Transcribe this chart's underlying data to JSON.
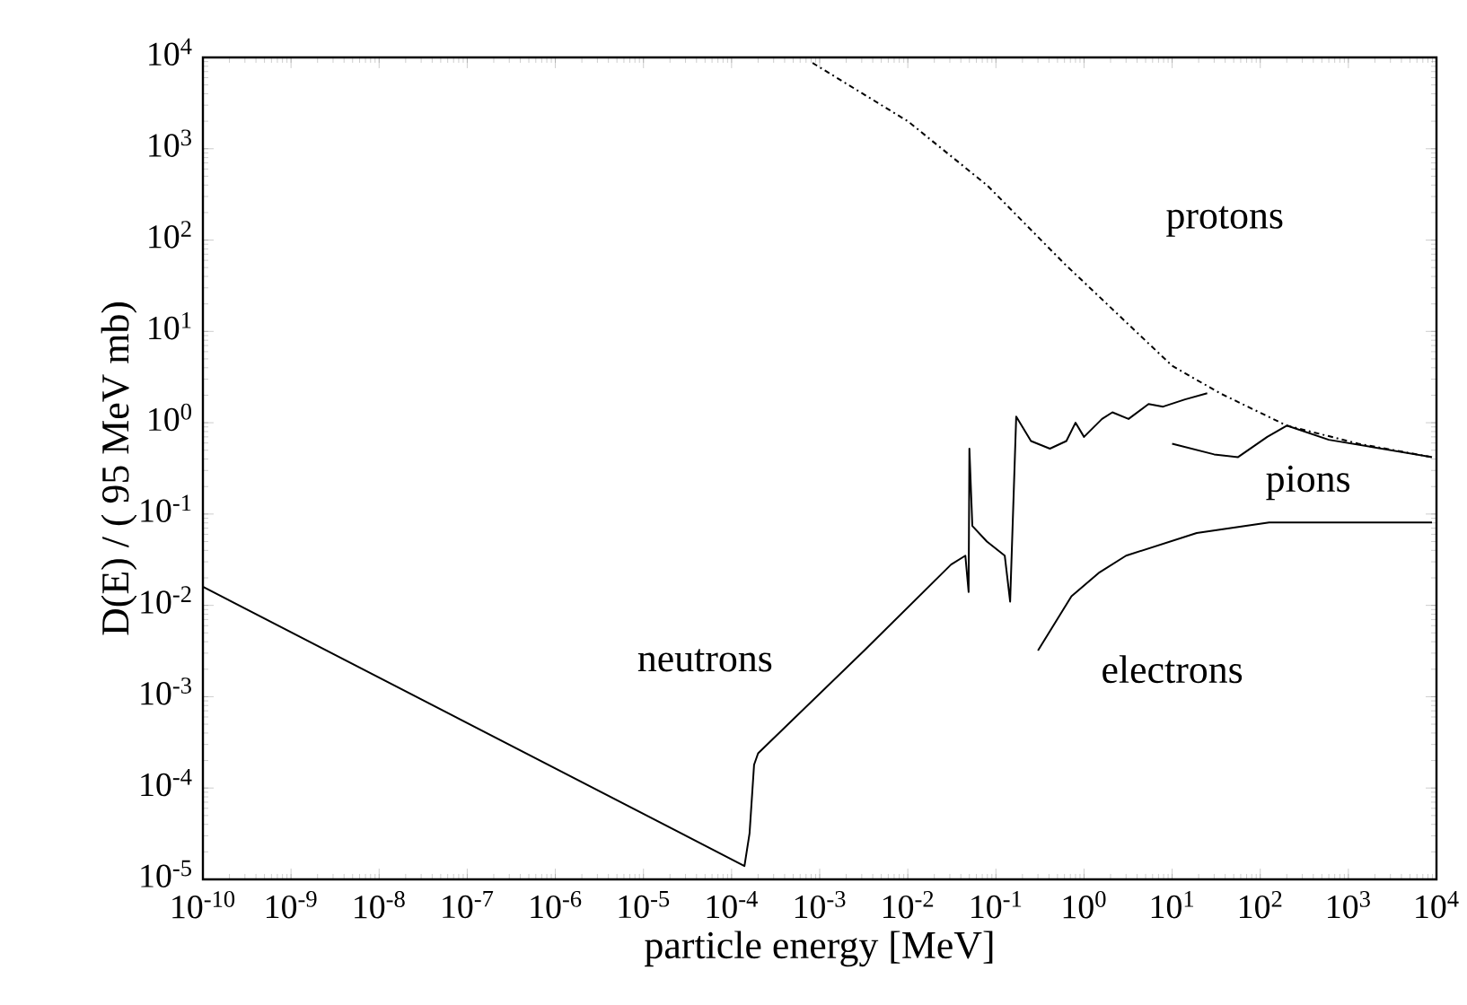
{
  "chart_data": {
    "type": "line",
    "xlabel": "particle energy [MeV]",
    "ylabel": "D(E) / ( 95 MeV mb)",
    "log": "xy",
    "legend": false,
    "grid": false,
    "xlim": [
      1e-10,
      10000
    ],
    "ylim": [
      1e-05,
      10000
    ],
    "xticks": [
      {
        "value": 1e-10,
        "label": "10$^{-10}$"
      },
      {
        "value": 1e-09,
        "label": "10$^{-9}$"
      },
      {
        "value": 1e-08,
        "label": "10$^{-8}$"
      },
      {
        "value": 1e-07,
        "label": "10$^{-7}$"
      },
      {
        "value": 1e-06,
        "label": "10$^{-6}$"
      },
      {
        "value": 1e-05,
        "label": "10$^{-5}$"
      },
      {
        "value": 0.0001,
        "label": "10$^{-4}$"
      },
      {
        "value": 0.001,
        "label": "10$^{-3}$"
      },
      {
        "value": 0.01,
        "label": "10$^{-2}$"
      },
      {
        "value": 0.1,
        "label": "10$^{-1}$"
      },
      {
        "value": 1,
        "label": "10$^{0}$"
      },
      {
        "value": 10,
        "label": "10$^{1}$"
      },
      {
        "value": 100,
        "label": "10$^{2}$"
      },
      {
        "value": 1000,
        "label": "10$^{3}$"
      },
      {
        "value": 10000,
        "label": "10$^{4}$"
      }
    ],
    "yticks": [
      {
        "value": 1e-05,
        "label": "10$^{-5}$"
      },
      {
        "value": 0.0001,
        "label": "10$^{-4}$"
      },
      {
        "value": 0.001,
        "label": "10$^{-3}$"
      },
      {
        "value": 0.01,
        "label": "10$^{-2}$"
      },
      {
        "value": 0.1,
        "label": "10$^{-1}$"
      },
      {
        "value": 1,
        "label": "10$^{0}$"
      },
      {
        "value": 10,
        "label": "10$^{1}$"
      },
      {
        "value": 100,
        "label": "10$^{2}$"
      },
      {
        "value": 1000,
        "label": "10$^{3}$"
      },
      {
        "value": 10000,
        "label": "10$^{4}$"
      }
    ],
    "series": [
      {
        "name": "protons",
        "color": "#000000",
        "line_style": "dashed",
        "x": [
          0.00083,
          0.01,
          0.079,
          0.6,
          10,
          35,
          200,
          1300,
          8900
        ],
        "values": [
          8700,
          2000,
          400,
          55,
          4.2,
          2.1,
          0.93,
          0.59,
          0.42
        ]
      },
      {
        "name": "pions",
        "color": "#000000",
        "x": [
          10,
          30,
          56,
          120,
          200,
          600,
          8900
        ],
        "values": [
          0.59,
          0.45,
          0.42,
          0.7,
          0.93,
          0.65,
          0.42
        ]
      },
      {
        "name": "neutrons",
        "color": "#000000",
        "x": [
          1e-10,
          0.00014,
          0.00016,
          0.00018,
          0.0002,
          0.0032,
          0.031,
          0.045,
          0.049,
          0.05,
          0.054,
          0.079,
          0.126,
          0.145,
          0.17,
          0.25,
          0.41,
          0.63,
          0.8,
          1.0,
          1.6,
          2.1,
          3.2,
          5.4,
          7.9,
          14,
          25
        ],
        "values": [
          0.016,
          1.4e-05,
          3.2e-05,
          0.00018,
          0.00024,
          0.0032,
          0.028,
          0.035,
          0.014,
          0.52,
          0.074,
          0.05,
          0.035,
          0.011,
          1.17,
          0.63,
          0.52,
          0.63,
          1.0,
          0.7,
          1.1,
          1.3,
          1.1,
          1.6,
          1.5,
          1.8,
          2.1
        ]
      },
      {
        "name": "electrons",
        "color": "#000000",
        "x": [
          0.3,
          0.72,
          1.5,
          3,
          19,
          126,
          8900
        ],
        "values": [
          0.0032,
          0.0126,
          0.023,
          0.035,
          0.062,
          0.081,
          0.081
        ]
      }
    ]
  }
}
